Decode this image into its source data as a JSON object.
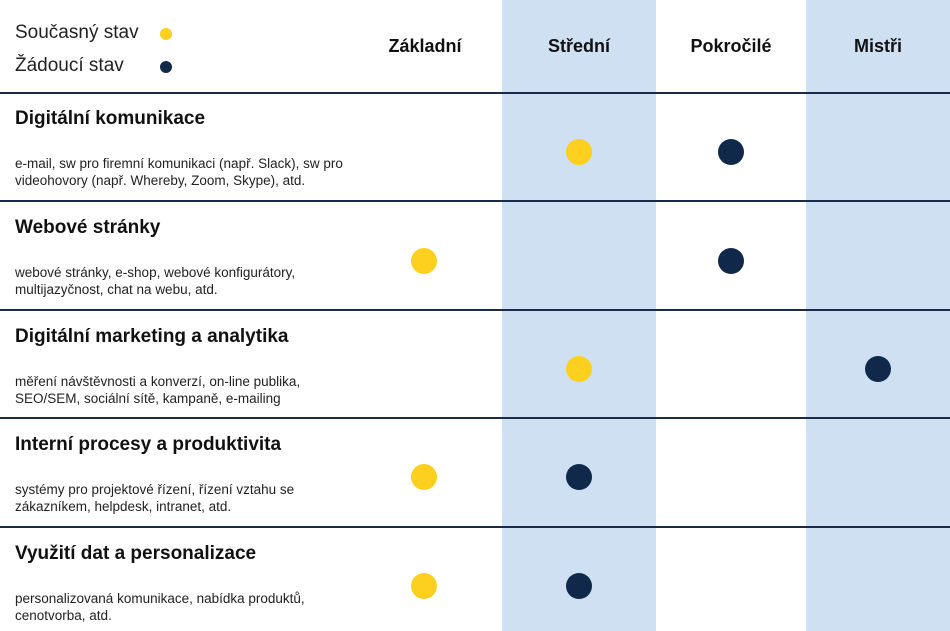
{
  "legend": {
    "current_label": "Současný stav",
    "desired_label": "Žádoucí stav"
  },
  "colors": {
    "current": "#fdd01f",
    "desired": "#10294a",
    "column_shade": "#cfe0f3",
    "divider": "#1a2b4a"
  },
  "chart_data": {
    "type": "table",
    "levels": [
      "Základní",
      "Střední",
      "Pokročilé",
      "Mistři"
    ],
    "rows": [
      {
        "title": "Digitální komunikace",
        "description": "e-mail, sw pro firemní komunikaci (např. Slack), sw pro videohovory (např. Whereby, Zoom, Skype), atd.",
        "current": "Střední",
        "desired": "Pokročilé"
      },
      {
        "title": "Webové stránky",
        "description": "webové stránky, e-shop, webové konfigurátory, multijazyčnost, chat na webu, atd.",
        "current": "Základní",
        "desired": "Pokročilé"
      },
      {
        "title": "Digitální marketing a analytika",
        "description": "měření návštěvnosti a konverzí, on-line publika, SEO/SEM, sociální sítě, kampaně, e-mailing",
        "current": "Střední",
        "desired": "Mistři"
      },
      {
        "title": "Interní procesy a produktivita",
        "description": "systémy pro projektové řízení, řízení vztahu se zákazníkem, helpdesk, intranet, atd.",
        "current": "Základní",
        "desired": "Střední"
      },
      {
        "title": "Využití dat a personalizace",
        "description": "personalizovaná komunikace, nabídka produktů, cenotvorba, atd.",
        "current": "Základní",
        "desired": "Střední"
      }
    ]
  }
}
